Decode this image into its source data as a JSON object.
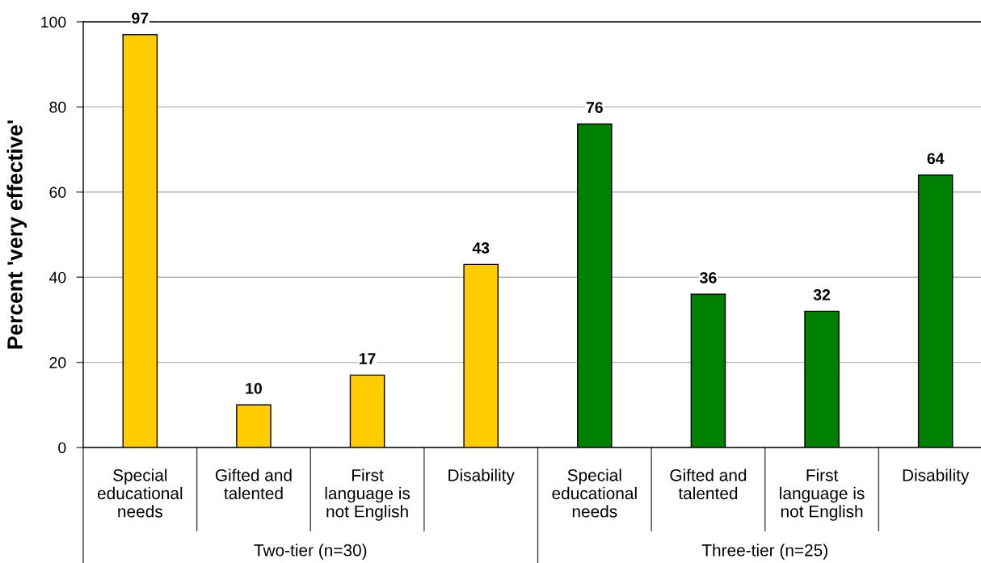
{
  "chart_data": {
    "type": "bar",
    "ylabel": "Percent 'very effective'",
    "categories": [
      "Special\neducational\nneeds",
      "Gifted and\ntalented",
      "First\nlanguage is\nnot English",
      "Disability",
      "Special\neducational\nneeds",
      "Gifted and\ntalented",
      "First\nlanguage is\nnot English",
      "Disability"
    ],
    "series": [
      {
        "color": "#ffcc00",
        "values": [
          97,
          10,
          17,
          43,
          null,
          null,
          null,
          null
        ]
      },
      {
        "color": "#008000",
        "values": [
          null,
          null,
          null,
          null,
          76,
          36,
          32,
          64
        ]
      }
    ],
    "annotations": [
      "Two-tier (n=30)",
      "Three-tier (n=25)"
    ],
    "ylim": [
      0,
      100
    ],
    "yticks": [
      0,
      20,
      40,
      60,
      80,
      100
    ],
    "grid": "y",
    "data_labels": true
  }
}
